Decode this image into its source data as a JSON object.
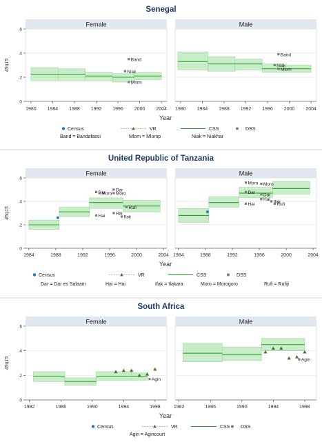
{
  "colors": {
    "title": "#1f3a66",
    "strip_bg": "#e2e8ef",
    "plot_bg": "#ffffff",
    "grid": "#e3e3e3",
    "band_fill": "#bfe9bf",
    "band_stroke": "#8fd38f",
    "css_line": "#2ca02c",
    "vr_marker": "#4e6b2a",
    "census_marker": "#1f7fbf",
    "dss_marker": "#7a7a7a",
    "axis": "#333333",
    "separator": "#cfd6df"
  },
  "legend_labels": {
    "census": "Census",
    "vr": "VR",
    "css": "CSS",
    "dss": "DSS"
  },
  "chart_data": [
    {
      "type": "line",
      "title": "Senegal",
      "xlabel": "Year",
      "ylabel": "45q15",
      "ylim": [
        0,
        0.6
      ],
      "yticks": [
        0,
        0.2,
        0.4,
        0.6
      ],
      "ytick_labels": [
        "0",
        ".2",
        ".4",
        ".6"
      ],
      "xlim": [
        1979,
        2005
      ],
      "xticks": [
        1980,
        1984,
        1988,
        1992,
        1996,
        2000,
        2004
      ],
      "grid": true,
      "legend_position": "bottom",
      "legend_items": [
        "census",
        "vr",
        "css",
        "dss"
      ],
      "legend_notes": [
        "Band = Bandafassi",
        "Mlom = Mlomp",
        "Niak = Niakhar"
      ],
      "panels": [
        {
          "name": "Female",
          "css": [
            {
              "x0": 1980,
              "x1": 1985,
              "y": 0.22,
              "lo": 0.17,
              "hi": 0.28
            },
            {
              "x0": 1985,
              "x1": 1990,
              "y": 0.22,
              "lo": 0.17,
              "hi": 0.27
            },
            {
              "x0": 1990,
              "x1": 1995,
              "y": 0.21,
              "lo": 0.17,
              "hi": 0.24
            },
            {
              "x0": 1995,
              "x1": 1999,
              "y": 0.2,
              "lo": 0.16,
              "hi": 0.23
            },
            {
              "x0": 1999,
              "x1": 2004,
              "y": 0.21,
              "lo": 0.18,
              "hi": 0.24
            }
          ],
          "dss": [
            {
              "x": 1998.0,
              "y": 0.35,
              "label": "Band"
            },
            {
              "x": 1997.3,
              "y": 0.25,
              "label": "Niak"
            },
            {
              "x": 1998.0,
              "y": 0.16,
              "label": "Mlom"
            }
          ],
          "vr": [],
          "census": []
        },
        {
          "name": "Male",
          "css": [
            {
              "x0": 1979.5,
              "x1": 1985,
              "y": 0.33,
              "lo": 0.26,
              "hi": 0.41
            },
            {
              "x0": 1985,
              "x1": 1990,
              "y": 0.31,
              "lo": 0.25,
              "hi": 0.37
            },
            {
              "x0": 1990,
              "x1": 1995,
              "y": 0.31,
              "lo": 0.26,
              "hi": 0.35
            },
            {
              "x0": 1995,
              "x1": 1999,
              "y": 0.27,
              "lo": 0.24,
              "hi": 0.31
            },
            {
              "x0": 1999,
              "x1": 2004,
              "y": 0.27,
              "lo": 0.24,
              "hi": 0.3
            }
          ],
          "dss": [
            {
              "x": 1998.0,
              "y": 0.39,
              "label": "Band"
            },
            {
              "x": 1997.3,
              "y": 0.3,
              "label": "Niak"
            },
            {
              "x": 1998.0,
              "y": 0.27,
              "label": "Mlom"
            }
          ],
          "vr": [],
          "census": []
        }
      ]
    },
    {
      "type": "line",
      "title": "United Republic of Tanzania",
      "xlabel": "Year",
      "ylabel": "45q15",
      "ylim": [
        0,
        0.6
      ],
      "yticks": [
        0,
        0.2,
        0.4,
        0.6
      ],
      "ytick_labels": [
        "0",
        ".2",
        ".4",
        ".6"
      ],
      "xlim": [
        1983.5,
        2004.5
      ],
      "xticks": [
        1984,
        1988,
        1992,
        1996,
        2000,
        2004
      ],
      "grid": true,
      "legend_position": "bottom",
      "legend_items": [
        "census",
        "vr",
        "css",
        "dss"
      ],
      "legend_notes": [
        "Dar = Dar es Salaam",
        "Hai = Hai",
        "Ifak = Ifakara",
        "Moro = Morogoro",
        "Rufi = Rufiji"
      ],
      "panels": [
        {
          "name": "Female",
          "css": [
            {
              "x0": 1984,
              "x1": 1988.5,
              "y": 0.2,
              "lo": 0.16,
              "hi": 0.24
            },
            {
              "x0": 1988.5,
              "x1": 1993,
              "y": 0.31,
              "lo": 0.27,
              "hi": 0.35
            },
            {
              "x0": 1993,
              "x1": 1998,
              "y": 0.39,
              "lo": 0.34,
              "hi": 0.43
            },
            {
              "x0": 1998,
              "x1": 2003.5,
              "y": 0.36,
              "lo": 0.31,
              "hi": 0.41
            }
          ],
          "census": [
            {
              "x": 1988.3,
              "y": 0.26
            }
          ],
          "dss": [
            {
              "x": 1996.6,
              "y": 0.5,
              "label": "Dar"
            },
            {
              "x": 1994.0,
              "y": 0.48,
              "label": "Dar"
            },
            {
              "x": 1994.5,
              "y": 0.47,
              "label": "Moro"
            },
            {
              "x": 1996.6,
              "y": 0.47,
              "label": "Moro"
            },
            {
              "x": 1998.5,
              "y": 0.35,
              "label": "Rufi"
            },
            {
              "x": 1996.6,
              "y": 0.3,
              "label": "Hai"
            },
            {
              "x": 1994.0,
              "y": 0.28,
              "label": "Hai"
            },
            {
              "x": 1997.8,
              "y": 0.27,
              "label": "Ifak"
            }
          ],
          "vr": []
        },
        {
          "name": "Male",
          "css": [
            {
              "x0": 1984,
              "x1": 1988.5,
              "y": 0.28,
              "lo": 0.22,
              "hi": 0.34
            },
            {
              "x0": 1988.5,
              "x1": 1993,
              "y": 0.39,
              "lo": 0.35,
              "hi": 0.44
            },
            {
              "x0": 1993,
              "x1": 1998,
              "y": 0.47,
              "lo": 0.43,
              "hi": 0.52
            },
            {
              "x0": 1998,
              "x1": 2003.5,
              "y": 0.51,
              "lo": 0.46,
              "hi": 0.57
            }
          ],
          "census": [
            {
              "x": 1988.3,
              "y": 0.31
            }
          ],
          "dss": [
            {
              "x": 1994.0,
              "y": 0.56,
              "label": "Moro"
            },
            {
              "x": 1996.3,
              "y": 0.55,
              "label": "Moro"
            },
            {
              "x": 1994.0,
              "y": 0.48,
              "label": "Dar"
            },
            {
              "x": 1996.3,
              "y": 0.46,
              "label": "Dar"
            },
            {
              "x": 1996.3,
              "y": 0.42,
              "label": "Hai"
            },
            {
              "x": 1997.8,
              "y": 0.4,
              "label": "Ifak"
            },
            {
              "x": 1998.3,
              "y": 0.38,
              "label": "Rufi"
            },
            {
              "x": 1994.0,
              "y": 0.38,
              "label": "Hai"
            }
          ],
          "vr": []
        }
      ]
    },
    {
      "type": "line",
      "title": "South Africa",
      "xlabel": "Year",
      "ylabel": "45q15",
      "ylim": [
        0,
        0.6
      ],
      "yticks": [
        0,
        0.2,
        0.4,
        0.6
      ],
      "ytick_labels": [
        "0",
        ".2",
        ".4",
        ".6"
      ],
      "xlim": [
        1981.5,
        1999.5
      ],
      "xticks": [
        1982,
        1986,
        1990,
        1994,
        1998
      ],
      "grid": true,
      "legend_position": "bottom",
      "legend_items": [
        "census",
        "vr",
        "css",
        "dss"
      ],
      "legend_notes": [
        "Agin = Agincourt"
      ],
      "panels": [
        {
          "name": "Female",
          "css": [
            {
              "x0": 1982.5,
              "x1": 1986.5,
              "y": 0.19,
              "lo": 0.15,
              "hi": 0.23
            },
            {
              "x0": 1986.5,
              "x1": 1990.5,
              "y": 0.15,
              "lo": 0.12,
              "hi": 0.18
            },
            {
              "x0": 1990.5,
              "x1": 1995,
              "y": 0.19,
              "lo": 0.16,
              "hi": 0.23
            },
            {
              "x0": 1995,
              "x1": 1997,
              "y": 0.19,
              "lo": 0.16,
              "hi": 0.22
            }
          ],
          "vr": [
            {
              "x": 1993,
              "y": 0.23
            },
            {
              "x": 1994,
              "y": 0.24
            },
            {
              "x": 1995,
              "y": 0.24
            },
            {
              "x": 1996,
              "y": 0.2
            },
            {
              "x": 1997,
              "y": 0.21
            },
            {
              "x": 1998,
              "y": 0.25
            }
          ],
          "dss": [
            {
              "x": 1997.3,
              "y": 0.17,
              "label": "Agin"
            }
          ],
          "census": []
        },
        {
          "name": "Male",
          "css": [
            {
              "x0": 1982.5,
              "x1": 1987.5,
              "y": 0.38,
              "lo": 0.31,
              "hi": 0.46
            },
            {
              "x0": 1987.5,
              "x1": 1992.5,
              "y": 0.37,
              "lo": 0.32,
              "hi": 0.43
            },
            {
              "x0": 1992.5,
              "x1": 1998,
              "y": 0.45,
              "lo": 0.4,
              "hi": 0.5
            }
          ],
          "vr": [
            {
              "x": 1993,
              "y": 0.39
            },
            {
              "x": 1994,
              "y": 0.42
            },
            {
              "x": 1995,
              "y": 0.42
            },
            {
              "x": 1996,
              "y": 0.34
            },
            {
              "x": 1997,
              "y": 0.35
            },
            {
              "x": 1998,
              "y": 0.39
            }
          ],
          "dss": [
            {
              "x": 1997.3,
              "y": 0.33,
              "label": "Agin"
            }
          ],
          "census": []
        }
      ]
    }
  ]
}
